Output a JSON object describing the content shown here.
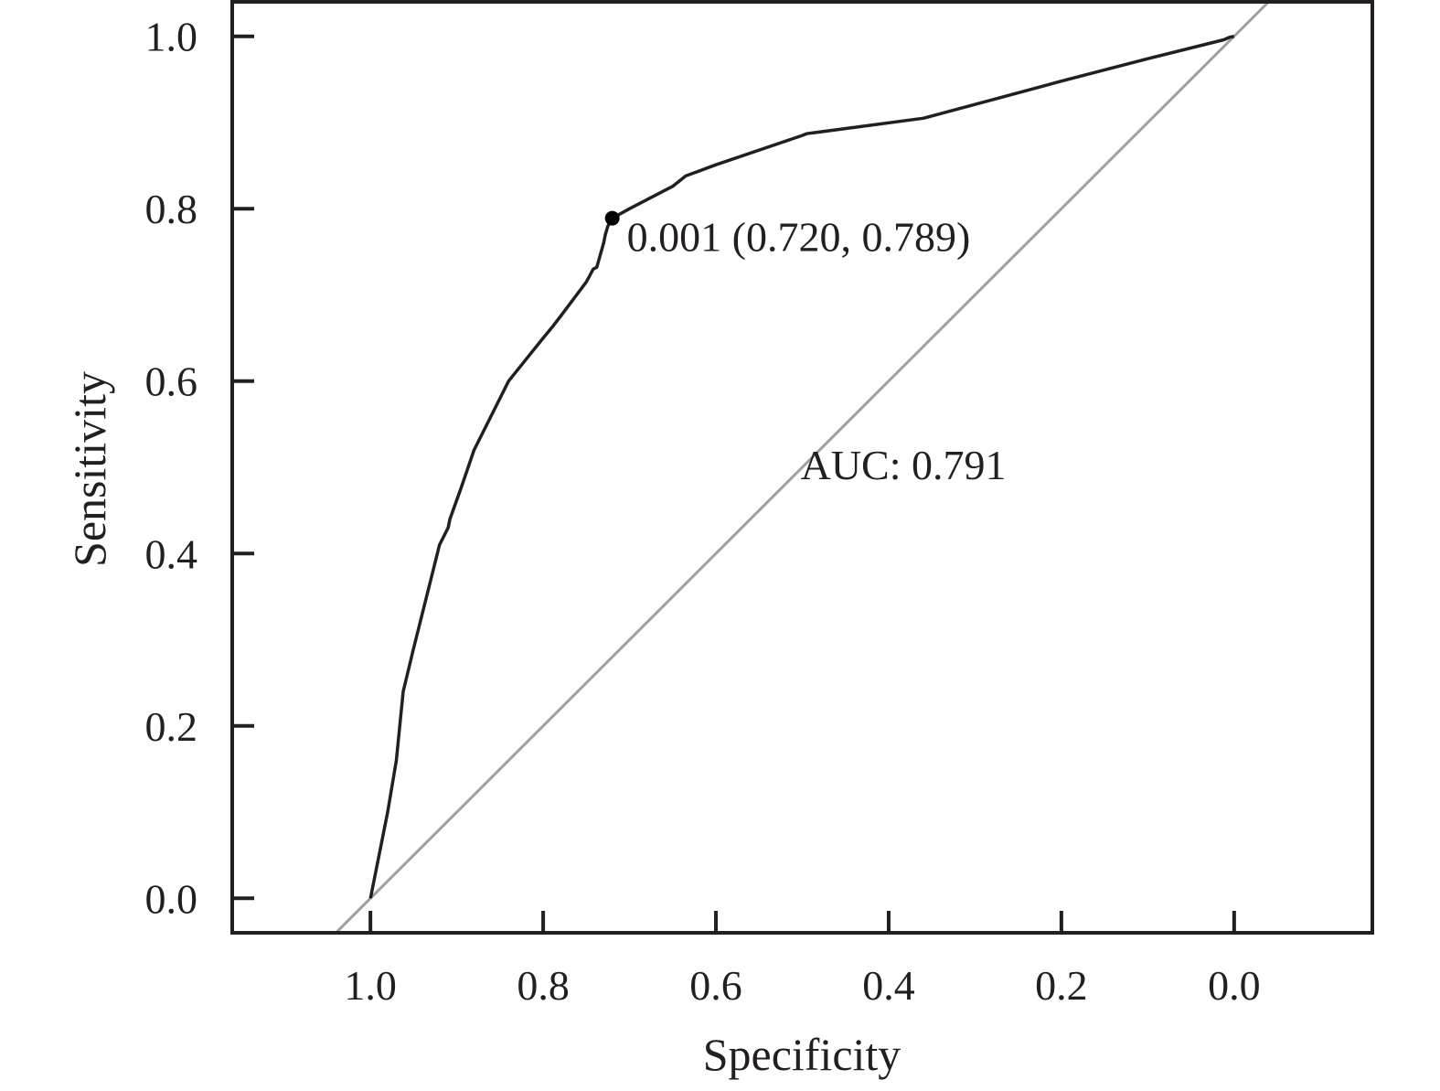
{
  "chart_data": {
    "type": "line",
    "title": "",
    "xlabel": "Specificity",
    "ylabel": "Sensitivity",
    "xlim": [
      1.16,
      -0.16
    ],
    "ylim": [
      -0.04,
      1.04
    ],
    "x_reversed": true,
    "xticks": [
      1.0,
      0.8,
      0.6,
      0.4,
      0.2,
      0.0
    ],
    "xtick_labels": [
      "1.0",
      "0.8",
      "0.6",
      "0.4",
      "0.2",
      "0.0"
    ],
    "yticks": [
      0.0,
      0.2,
      0.4,
      0.6,
      0.8,
      1.0
    ],
    "ytick_labels": [
      "0.0",
      "0.2",
      "0.4",
      "0.6",
      "0.8",
      "1.0"
    ],
    "grid": false,
    "legend": "none",
    "series": [
      {
        "specificity": [
          1.0,
          0.99,
          0.98,
          0.97,
          0.962,
          0.95,
          0.93,
          0.92,
          0.91,
          0.908,
          0.895,
          0.88,
          0.84,
          0.8,
          0.79,
          0.78,
          0.75,
          0.742,
          0.738,
          0.73,
          0.728,
          0.725,
          0.72,
          0.7,
          0.65,
          0.635,
          0.6,
          0.5,
          0.495,
          0.36,
          0.3,
          0.2,
          0.1,
          0.012,
          0.005,
          0.0
        ],
        "sensitivity": [
          0.0,
          0.05,
          0.1,
          0.16,
          0.24,
          0.29,
          0.37,
          0.41,
          0.43,
          0.44,
          0.476,
          0.52,
          0.6,
          0.65,
          0.662,
          0.675,
          0.715,
          0.73,
          0.732,
          0.76,
          0.77,
          0.78,
          0.789,
          0.8,
          0.826,
          0.838,
          0.851,
          0.885,
          0.887,
          0.905,
          0.921,
          0.948,
          0.974,
          0.996,
          0.999,
          1.0
        ],
        "color": "#231f20"
      },
      {
        "specificity": [
          1.04,
          -0.04
        ],
        "sensitivity": [
          -0.04,
          1.04
        ],
        "color": "#a0a0a0"
      }
    ],
    "annotations": [
      {
        "text": "0.001 (0.720, 0.789)",
        "specificity": 0.72,
        "sensitivity": 0.789
      },
      {
        "text": "AUC: 0.791",
        "specificity": 0.502,
        "sensitivity": 0.486
      }
    ],
    "highlight_point": {
      "specificity": 0.72,
      "sensitivity": 0.789,
      "color": "#000000"
    },
    "colors": {
      "frame": "#231f20",
      "text": "#231f20",
      "curve": "#231f20",
      "diagonal": "#a0a0a0"
    }
  }
}
